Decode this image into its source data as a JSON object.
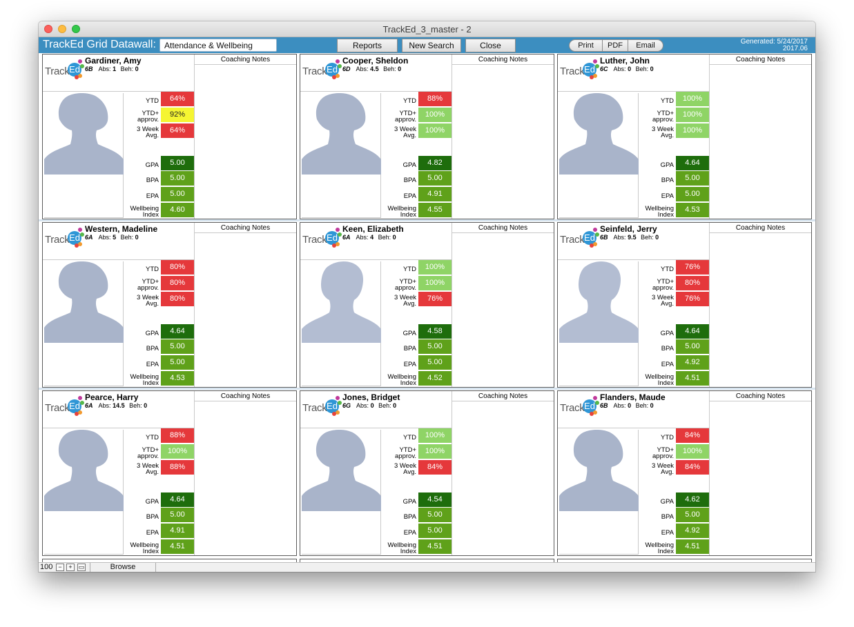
{
  "window": {
    "title": "TrackEd_3_master - 2"
  },
  "header": {
    "app_title": "TrackEd Grid Datawall:",
    "view_value": "Attendance & Wellbeing",
    "buttons": {
      "reports": "Reports",
      "new_search": "New Search",
      "close": "Close"
    },
    "export": {
      "print": "Print",
      "pdf": "PDF",
      "email": "Email"
    },
    "generated_line1": "Generated: 5/24/2017",
    "generated_line2": "2017.06"
  },
  "labels": {
    "logo_track": "Track",
    "logo_ed": "Ed",
    "abs": "Abs:",
    "beh": "Beh:",
    "coaching_notes": "Coaching Notes",
    "ytd": "YTD",
    "ytd_approv_1": "YTD+",
    "ytd_approv_2": "approv.",
    "three_week_1": "3 Week",
    "three_week_2": "Avg.",
    "gpa": "GPA",
    "bpa": "BPA",
    "epa": "EPA",
    "wellbeing_1": "Wellbeing",
    "wellbeing_2": "Index"
  },
  "colors": {
    "red": "#e5383b",
    "light_green": "#8fd466",
    "yellow": "#f5f532",
    "dark_green": "#1e6d0c",
    "mid_green": "#5fa11a",
    "silhouette": "#a9b4ca",
    "header_blue": "#3c8ec0"
  },
  "students": [
    {
      "name": "Gardiner, Amy",
      "class": "6B",
      "abs": "1",
      "beh": "0",
      "gender": "f",
      "ytd": "64%",
      "ytd_status": "red",
      "ytd_approv": "92%",
      "ytd_approv_status": "yellow",
      "three_week": "64%",
      "three_week_status": "red",
      "gpa": "5.00",
      "bpa": "5.00",
      "epa": "5.00",
      "wellbeing": "4.60"
    },
    {
      "name": "Cooper, Sheldon",
      "class": "6D",
      "abs": "4.5",
      "beh": "0",
      "gender": "f",
      "ytd": "88%",
      "ytd_status": "red",
      "ytd_approv": "100%",
      "ytd_approv_status": "light_green",
      "three_week": "100%",
      "three_week_status": "light_green",
      "gpa": "4.82",
      "bpa": "5.00",
      "epa": "4.91",
      "wellbeing": "4.55"
    },
    {
      "name": "Luther, John",
      "class": "6C",
      "abs": "0",
      "beh": "0",
      "gender": "f",
      "ytd": "100%",
      "ytd_status": "light_green",
      "ytd_approv": "100%",
      "ytd_approv_status": "light_green",
      "three_week": "100%",
      "three_week_status": "light_green",
      "gpa": "4.64",
      "bpa": "5.00",
      "epa": "5.00",
      "wellbeing": "4.53"
    },
    {
      "name": "Western, Madeline",
      "class": "6A",
      "abs": "5",
      "beh": "0",
      "gender": "f",
      "ytd": "80%",
      "ytd_status": "red",
      "ytd_approv": "80%",
      "ytd_approv_status": "red",
      "three_week": "80%",
      "three_week_status": "red",
      "gpa": "4.64",
      "bpa": "5.00",
      "epa": "5.00",
      "wellbeing": "4.53"
    },
    {
      "name": "Keen, Elizabeth",
      "class": "6A",
      "abs": "4",
      "beh": "0",
      "gender": "m",
      "ytd": "100%",
      "ytd_status": "light_green",
      "ytd_approv": "100%",
      "ytd_approv_status": "light_green",
      "three_week": "76%",
      "three_week_status": "red",
      "gpa": "4.58",
      "bpa": "5.00",
      "epa": "5.00",
      "wellbeing": "4.52"
    },
    {
      "name": "Seinfeld, Jerry",
      "class": "6B",
      "abs": "9.5",
      "beh": "0",
      "gender": "m",
      "ytd": "76%",
      "ytd_status": "red",
      "ytd_approv": "80%",
      "ytd_approv_status": "red",
      "three_week": "76%",
      "three_week_status": "red",
      "gpa": "4.64",
      "bpa": "5.00",
      "epa": "4.92",
      "wellbeing": "4.51"
    },
    {
      "name": "Pearce, Harry",
      "class": "6A",
      "abs": "14.5",
      "beh": "0",
      "gender": "f",
      "ytd": "88%",
      "ytd_status": "red",
      "ytd_approv": "100%",
      "ytd_approv_status": "light_green",
      "three_week": "88%",
      "three_week_status": "red",
      "gpa": "4.64",
      "bpa": "5.00",
      "epa": "4.91",
      "wellbeing": "4.51"
    },
    {
      "name": "Jones, Bridget",
      "class": "6G",
      "abs": "0",
      "beh": "0",
      "gender": "f",
      "ytd": "100%",
      "ytd_status": "light_green",
      "ytd_approv": "100%",
      "ytd_approv_status": "light_green",
      "three_week": "84%",
      "three_week_status": "red",
      "gpa": "4.54",
      "bpa": "5.00",
      "epa": "5.00",
      "wellbeing": "4.51"
    },
    {
      "name": "Flanders, Maude",
      "class": "6B",
      "abs": "0",
      "beh": "0",
      "gender": "f",
      "ytd": "84%",
      "ytd_status": "red",
      "ytd_approv": "100%",
      "ytd_approv_status": "light_green",
      "three_week": "84%",
      "three_week_status": "red",
      "gpa": "4.62",
      "bpa": "5.00",
      "epa": "4.92",
      "wellbeing": "4.51"
    }
  ],
  "footer": {
    "zoom": "100",
    "mode": "Browse"
  }
}
